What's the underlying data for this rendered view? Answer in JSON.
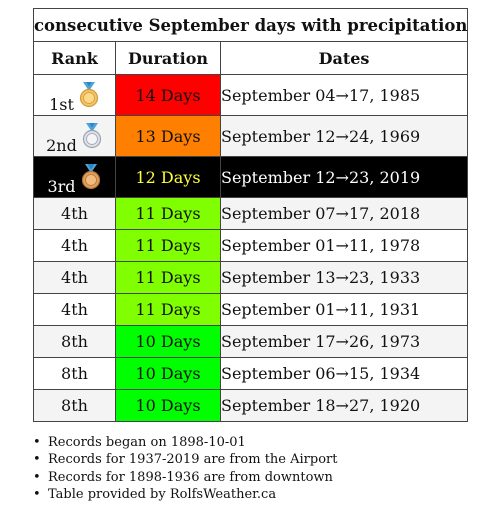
{
  "table": {
    "title": "consecutive September days with precipitation",
    "headers": {
      "rank": "Rank",
      "duration": "Duration",
      "dates": "Dates"
    },
    "rows": [
      {
        "rank": "1st",
        "medal": "gold-medal-icon",
        "duration": "14 Days",
        "dates": "September 04→17, 1985",
        "duration_color": "#ff0000",
        "row_style": "white"
      },
      {
        "rank": "2nd",
        "medal": "silver-medal-icon",
        "duration": "13 Days",
        "dates": "September 12→24, 1969",
        "duration_color": "#ff7f00",
        "row_style": "alt"
      },
      {
        "rank": "3rd",
        "medal": "bronze-medal-icon",
        "duration": "12 Days",
        "dates": "September 12→23, 2019",
        "duration_color": "#000000",
        "row_style": "black"
      },
      {
        "rank": "4th",
        "duration": "11 Days",
        "dates": "September 07→17, 2018",
        "duration_color": "#7fff00",
        "row_style": "alt"
      },
      {
        "rank": "4th",
        "duration": "11 Days",
        "dates": "September 01→11, 1978",
        "duration_color": "#7fff00",
        "row_style": "white"
      },
      {
        "rank": "4th",
        "duration": "11 Days",
        "dates": "September 13→23, 1933",
        "duration_color": "#7fff00",
        "row_style": "alt"
      },
      {
        "rank": "4th",
        "duration": "11 Days",
        "dates": "September 01→11, 1931",
        "duration_color": "#7fff00",
        "row_style": "white"
      },
      {
        "rank": "8th",
        "duration": "10 Days",
        "dates": "September 17→26, 1973",
        "duration_color": "#00ff00",
        "row_style": "alt"
      },
      {
        "rank": "8th",
        "duration": "10 Days",
        "dates": "September 06→15, 1934",
        "duration_color": "#00ff00",
        "row_style": "white"
      },
      {
        "rank": "8th",
        "duration": "10 Days",
        "dates": "September 18→27, 1920",
        "duration_color": "#00ff00",
        "row_style": "alt"
      }
    ]
  },
  "notes": [
    "Records began on 1898-10-01",
    "Records for 1937-2019 are from the Airport",
    "Records for 1898-1936 are from downtown",
    "Table provided by RolfsWeather.ca"
  ]
}
